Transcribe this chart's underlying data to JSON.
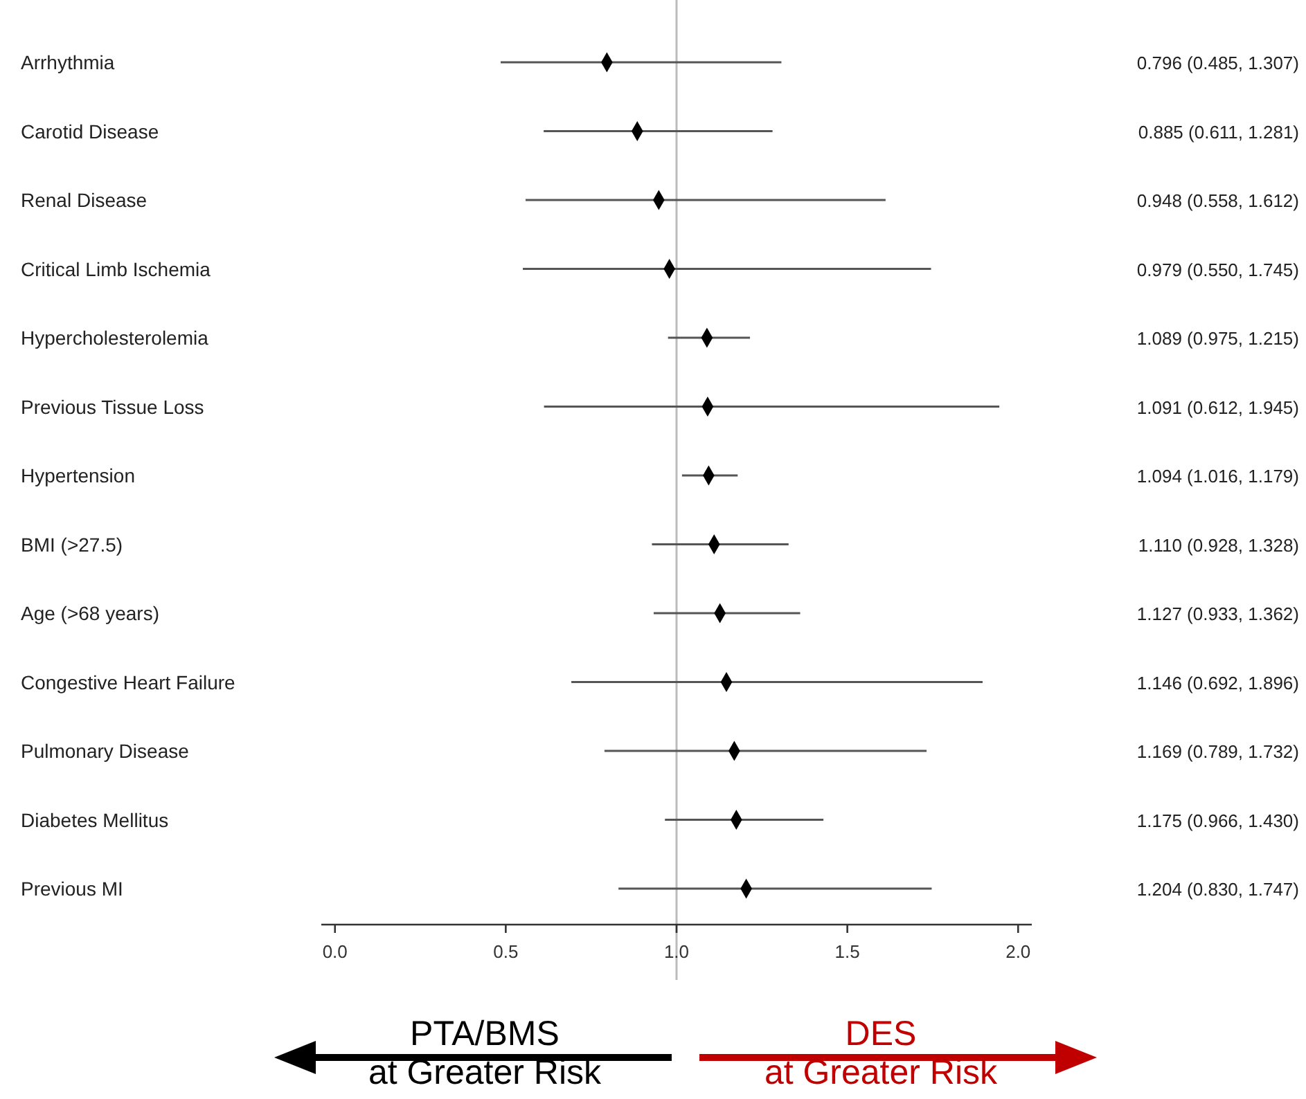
{
  "chart_data": {
    "type": "scatter",
    "orientation": "horizontal",
    "marker": "diamond",
    "grid": false,
    "categories": [
      "Arrhythmia",
      "Carotid Disease",
      "Renal Disease",
      "Critical Limb Ischemia",
      "Hypercholesterolemia",
      "Previous Tissue Loss",
      "Hypertension",
      "BMI (>27.5)",
      "Age (>68 years)",
      "Congestive Heart Failure",
      "Pulmonary Disease",
      "Diabetes Mellitus",
      "Previous MI"
    ],
    "series": [
      {
        "color": "#000000",
        "values": [
          0.796,
          0.885,
          0.948,
          0.979,
          1.089,
          1.091,
          1.094,
          1.11,
          1.127,
          1.146,
          1.169,
          1.175,
          1.204
        ],
        "errors": [
          [
            0.485,
            1.307
          ],
          [
            0.611,
            1.281
          ],
          [
            0.558,
            1.612
          ],
          [
            0.55,
            1.745
          ],
          [
            0.975,
            1.215
          ],
          [
            0.612,
            1.945
          ],
          [
            1.016,
            1.179
          ],
          [
            0.928,
            1.328
          ],
          [
            0.933,
            1.362
          ],
          [
            0.692,
            1.896
          ],
          [
            0.789,
            1.732
          ],
          [
            0.966,
            1.43
          ],
          [
            0.83,
            1.747
          ]
        ],
        "value_labels": [
          "0.796 (0.485, 1.307)",
          "0.885 (0.611, 1.281)",
          "0.948 (0.558, 1.612)",
          "0.979 (0.550, 1.745)",
          "1.089 (0.975, 1.215)",
          "1.091 (0.612, 1.945)",
          "1.094 (1.016, 1.179)",
          "1.110 (0.928, 1.328)",
          "1.127 (0.933, 1.362)",
          "1.146 (0.692, 1.896)",
          "1.169 (0.789, 1.732)",
          "1.175 (0.966, 1.430)",
          "1.204 (0.830, 1.747)"
        ]
      }
    ],
    "xlim": [
      -0.04,
      2.04
    ],
    "xticks": [
      {
        "value": 0,
        "label": "0.0"
      },
      0.5,
      {
        "value": 1,
        "label": "1.0"
      },
      1.5,
      {
        "value": 2,
        "label": "2.0"
      }
    ],
    "ref_lines": [
      {
        "axis": "x",
        "value": 1,
        "color": "#bbbbbb"
      }
    ],
    "annotations": [
      "PTA/BMS\nat Greater Risk",
      "DES\nat Greater Risk"
    ]
  }
}
